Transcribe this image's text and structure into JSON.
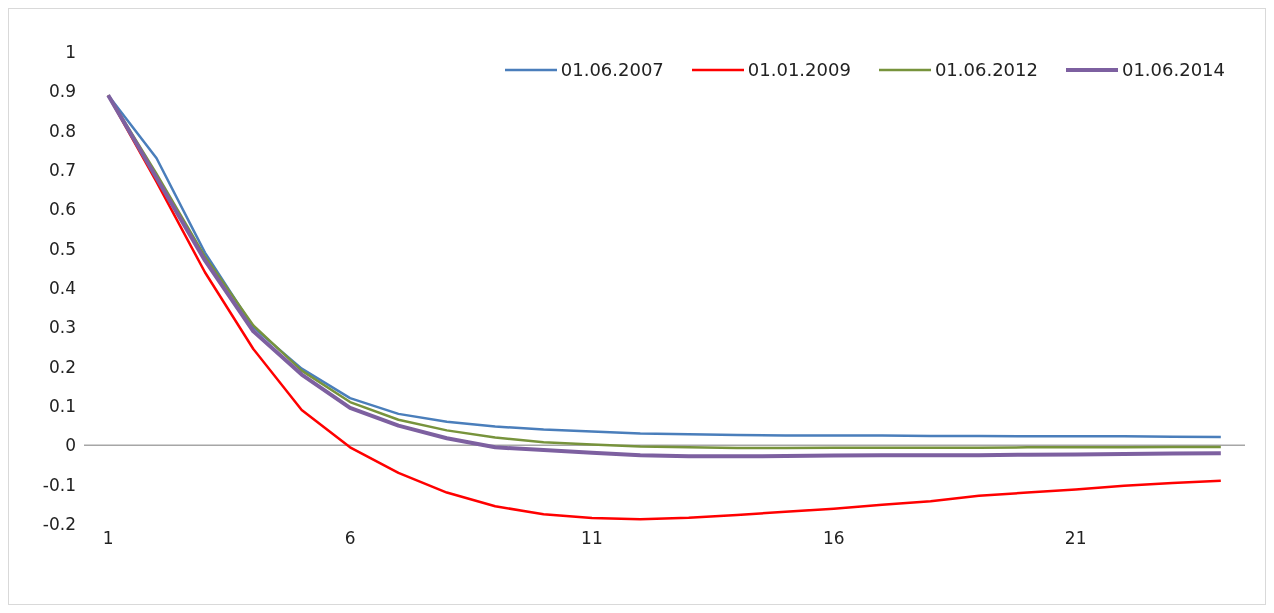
{
  "chart_data": {
    "type": "line",
    "x": [
      1,
      2,
      3,
      4,
      5,
      6,
      7,
      8,
      9,
      10,
      11,
      12,
      13,
      14,
      15,
      16,
      17,
      18,
      19,
      20,
      21,
      22,
      23,
      24
    ],
    "xlim": [
      0.5,
      24.5
    ],
    "xticks": [
      1,
      6,
      11,
      16,
      21
    ],
    "ylim": [
      -0.2,
      1
    ],
    "yticks": [
      -0.2,
      -0.1,
      0,
      0.1,
      0.2,
      0.3,
      0.4,
      0.5,
      0.6,
      0.7,
      0.8,
      0.9,
      1
    ],
    "legend": "top right",
    "marker": "none",
    "line_style": "solid",
    "series": [
      {
        "name": "01.06.2007",
        "color": "#4a7ebb",
        "values": [
          0.89,
          0.73,
          0.49,
          0.3,
          0.195,
          0.12,
          0.08,
          0.06,
          0.048,
          0.04,
          0.035,
          0.03,
          0.028,
          0.026,
          0.025,
          0.025,
          0.025,
          0.024,
          0.024,
          0.023,
          0.023,
          0.023,
          0.022,
          0.021
        ]
      },
      {
        "name": "01.01.2009",
        "color": "#ff0000",
        "values": [
          0.89,
          0.67,
          0.44,
          0.245,
          0.09,
          -0.005,
          -0.07,
          -0.12,
          -0.155,
          -0.175,
          -0.185,
          -0.188,
          -0.184,
          -0.177,
          -0.169,
          -0.161,
          -0.151,
          -0.142,
          -0.128,
          -0.12,
          -0.112,
          -0.103,
          -0.096,
          -0.09
        ]
      },
      {
        "name": "01.06.2012",
        "color": "#77933c",
        "values": [
          0.89,
          0.69,
          0.48,
          0.305,
          0.19,
          0.11,
          0.065,
          0.038,
          0.02,
          0.008,
          0.002,
          -0.003,
          -0.005,
          -0.007,
          -0.007,
          -0.006,
          -0.006,
          -0.006,
          -0.006,
          -0.005,
          -0.005,
          -0.005,
          -0.004,
          -0.004
        ]
      },
      {
        "name": "01.06.2014",
        "color": "#7d60a0",
        "values": [
          0.89,
          0.68,
          0.47,
          0.29,
          0.18,
          0.095,
          0.05,
          0.018,
          -0.005,
          -0.012,
          -0.019,
          -0.025,
          -0.028,
          -0.028,
          -0.027,
          -0.026,
          -0.025,
          -0.025,
          -0.025,
          -0.024,
          -0.023,
          -0.022,
          -0.021,
          -0.02
        ]
      }
    ]
  }
}
